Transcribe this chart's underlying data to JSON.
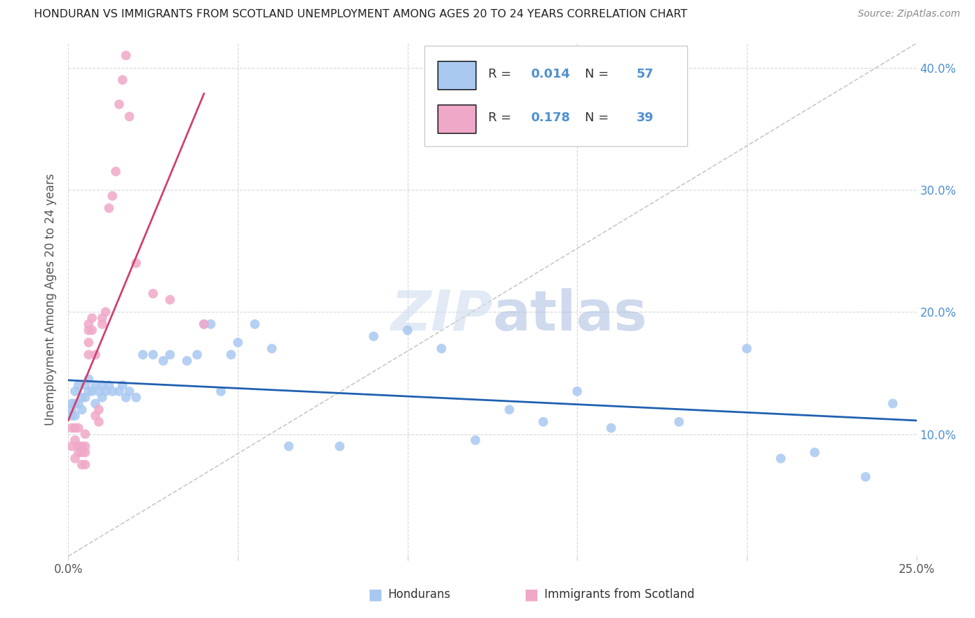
{
  "title": "HONDURAN VS IMMIGRANTS FROM SCOTLAND UNEMPLOYMENT AMONG AGES 20 TO 24 YEARS CORRELATION CHART",
  "source": "Source: ZipAtlas.com",
  "ylabel": "Unemployment Among Ages 20 to 24 years",
  "xlim": [
    0.0,
    0.25
  ],
  "ylim": [
    0.0,
    0.42
  ],
  "legend_labels": [
    "Hondurans",
    "Immigrants from Scotland"
  ],
  "R_honduran": 0.014,
  "N_honduran": 57,
  "R_scotland": 0.178,
  "N_scotland": 39,
  "color_honduran": "#a8c8f0",
  "color_scotland": "#f0a8c8",
  "line_color_honduran": "#2060b0",
  "line_color_scotland": "#d04070",
  "diagonal_color": "#c8c8c8",
  "watermark_color": "#c8d8f0",
  "honduran_x": [
    0.001,
    0.001,
    0.001,
    0.002,
    0.002,
    0.002,
    0.003,
    0.003,
    0.004,
    0.004,
    0.005,
    0.005,
    0.006,
    0.006,
    0.007,
    0.008,
    0.008,
    0.009,
    0.01,
    0.01,
    0.011,
    0.012,
    0.013,
    0.015,
    0.016,
    0.017,
    0.018,
    0.02,
    0.022,
    0.025,
    0.028,
    0.03,
    0.035,
    0.038,
    0.04,
    0.042,
    0.045,
    0.048,
    0.05,
    0.055,
    0.06,
    0.065,
    0.08,
    0.09,
    0.1,
    0.11,
    0.12,
    0.13,
    0.14,
    0.15,
    0.16,
    0.18,
    0.2,
    0.21,
    0.22,
    0.235,
    0.243
  ],
  "honduran_y": [
    0.125,
    0.12,
    0.115,
    0.135,
    0.125,
    0.115,
    0.14,
    0.125,
    0.13,
    0.12,
    0.14,
    0.13,
    0.145,
    0.135,
    0.135,
    0.14,
    0.125,
    0.135,
    0.14,
    0.13,
    0.135,
    0.14,
    0.135,
    0.135,
    0.14,
    0.13,
    0.135,
    0.13,
    0.165,
    0.165,
    0.16,
    0.165,
    0.16,
    0.165,
    0.19,
    0.19,
    0.135,
    0.165,
    0.175,
    0.19,
    0.17,
    0.09,
    0.09,
    0.18,
    0.185,
    0.17,
    0.095,
    0.12,
    0.11,
    0.135,
    0.105,
    0.11,
    0.17,
    0.08,
    0.085,
    0.065,
    0.125
  ],
  "scotland_x": [
    0.001,
    0.001,
    0.002,
    0.002,
    0.002,
    0.003,
    0.003,
    0.003,
    0.004,
    0.004,
    0.004,
    0.005,
    0.005,
    0.005,
    0.005,
    0.006,
    0.006,
    0.006,
    0.006,
    0.007,
    0.007,
    0.008,
    0.008,
    0.009,
    0.009,
    0.01,
    0.01,
    0.011,
    0.012,
    0.013,
    0.014,
    0.015,
    0.016,
    0.017,
    0.018,
    0.02,
    0.025,
    0.03,
    0.04
  ],
  "scotland_y": [
    0.105,
    0.09,
    0.105,
    0.095,
    0.08,
    0.105,
    0.09,
    0.085,
    0.085,
    0.09,
    0.075,
    0.1,
    0.09,
    0.085,
    0.075,
    0.19,
    0.185,
    0.175,
    0.165,
    0.195,
    0.185,
    0.165,
    0.115,
    0.12,
    0.11,
    0.19,
    0.195,
    0.2,
    0.285,
    0.295,
    0.315,
    0.37,
    0.39,
    0.41,
    0.36,
    0.24,
    0.215,
    0.21,
    0.19
  ]
}
